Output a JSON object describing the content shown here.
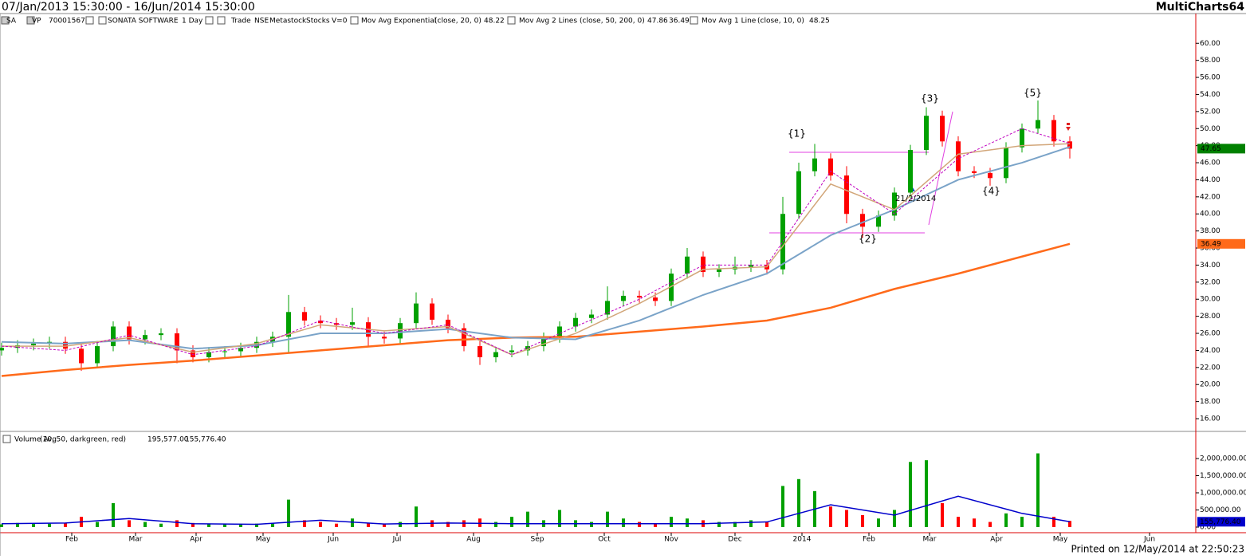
{
  "header": {
    "range": "07/Jan/2013 15:30:00 - 16/Jun/2014 15:30:00",
    "brand": "MultiCharts64",
    "legend": [
      "SA",
      "VP",
      "70001567",
      "SONATA SOFTWARE",
      "1 Day",
      "Trade",
      "NSE",
      "Metastock",
      "Stocks",
      "V=0",
      "Mov Avg Exponential",
      "(close,  20,  0)",
      "48.22",
      "Mov Avg 2 Lines",
      "(close,  50,  200,  0)",
      "47.86",
      "36.49",
      "Mov Avg 1 Line",
      "(close,  10,  0)",
      "48.25"
    ]
  },
  "footer": "Printed on 12/May/2014 at 22:50:23",
  "annotations": [
    "{1}",
    "{2}",
    "{3}",
    "{4}",
    "{5}",
    "21/2/2014"
  ],
  "chart_data": [
    {
      "type": "candlestick",
      "x": [
        0,
        5,
        10,
        15,
        20,
        25,
        30,
        35,
        40,
        45,
        50,
        55,
        60,
        65,
        70,
        75,
        80,
        85,
        90,
        95,
        100,
        105,
        110,
        115,
        120,
        125,
        130,
        135,
        140,
        145,
        150,
        155,
        160,
        165,
        170,
        175,
        180,
        185,
        190,
        195,
        200,
        205,
        210,
        215,
        220,
        225,
        230,
        235,
        240,
        245,
        250,
        255,
        260,
        265,
        270,
        275,
        280,
        285,
        290,
        295,
        300,
        305,
        310,
        315,
        320,
        325,
        330,
        335
      ],
      "open": [
        24.0,
        24.3,
        24.6,
        24.8,
        25.0,
        24.2,
        22.5,
        24.5,
        26.8,
        25.3,
        25.8,
        26.0,
        24.0,
        23.2,
        23.8,
        23.9,
        24.3,
        25.0,
        25.6,
        28.5,
        27.5,
        27.2,
        27.0,
        27.3,
        25.6,
        25.4,
        27.2,
        29.5,
        27.6,
        26.6,
        24.5,
        23.2,
        23.8,
        24.0,
        24.5,
        25.5,
        26.8,
        27.8,
        28.2,
        29.8,
        30.4,
        30.2,
        29.8,
        33.0,
        35.0,
        33.2,
        33.5,
        33.8,
        34.0,
        33.5,
        40.0,
        45.0,
        46.5,
        44.5,
        40.0,
        38.5,
        39.8,
        42.5,
        47.5,
        51.5,
        48.5,
        45.0,
        44.8,
        44.2,
        47.8,
        50.0,
        51.0,
        48.5
      ],
      "high": [
        24.9,
        25.2,
        25.4,
        25.6,
        25.6,
        24.8,
        25.1,
        27.4,
        27.4,
        26.4,
        26.6,
        26.6,
        24.6,
        24.4,
        24.5,
        24.9,
        25.6,
        26.2,
        30.5,
        29.1,
        28.1,
        27.8,
        29.0,
        27.9,
        26.2,
        27.8,
        30.8,
        30.1,
        28.2,
        27.2,
        25.1,
        24.4,
        24.6,
        25.1,
        26.1,
        27.4,
        28.4,
        28.8,
        31.5,
        31.0,
        31.0,
        30.8,
        33.6,
        36.0,
        35.6,
        34.1,
        35.0,
        34.6,
        34.6,
        42.0,
        46.0,
        48.2,
        47.1,
        45.6,
        40.6,
        40.4,
        43.1,
        48.1,
        52.5,
        52.1,
        49.1,
        45.6,
        45.4,
        48.4,
        50.6,
        53.3,
        51.6,
        49.1
      ],
      "low": [
        23.4,
        23.7,
        24.0,
        24.2,
        23.6,
        21.6,
        21.9,
        23.9,
        24.7,
        24.7,
        25.2,
        22.5,
        22.6,
        22.6,
        23.2,
        23.3,
        23.7,
        24.4,
        23.8,
        26.9,
        26.6,
        26.4,
        26.4,
        24.5,
        24.8,
        24.8,
        26.6,
        27.0,
        26.0,
        23.9,
        22.3,
        22.6,
        23.2,
        23.4,
        23.9,
        24.9,
        26.2,
        27.2,
        27.6,
        29.2,
        29.6,
        29.2,
        29.2,
        32.4,
        32.6,
        32.6,
        32.9,
        33.2,
        32.9,
        32.9,
        39.4,
        44.4,
        43.9,
        38.9,
        37.2,
        37.9,
        39.2,
        41.9,
        46.9,
        47.9,
        44.4,
        44.2,
        43.3,
        43.6,
        47.2,
        49.4,
        47.9,
        46.5
      ],
      "close": [
        24.3,
        24.6,
        24.8,
        25.0,
        24.2,
        22.5,
        24.5,
        26.8,
        25.3,
        25.8,
        26.0,
        24.0,
        23.2,
        23.8,
        23.9,
        24.3,
        25.0,
        25.6,
        28.5,
        27.5,
        27.2,
        27.0,
        27.3,
        25.6,
        25.4,
        27.2,
        29.5,
        27.6,
        26.6,
        24.5,
        23.2,
        23.8,
        24.0,
        24.5,
        25.5,
        26.8,
        27.8,
        28.2,
        29.8,
        30.4,
        30.2,
        29.8,
        33.0,
        35.0,
        33.2,
        33.5,
        33.8,
        34.0,
        33.5,
        40.0,
        45.0,
        46.5,
        44.5,
        40.0,
        38.5,
        39.8,
        42.5,
        47.5,
        51.5,
        48.5,
        45.0,
        44.8,
        44.2,
        47.8,
        50.0,
        51.0,
        48.5,
        47.65
      ],
      "up_color": "#00a000",
      "down_color": "#ff0000",
      "ma_x": [
        0,
        20,
        40,
        60,
        80,
        100,
        120,
        140,
        160,
        180,
        200,
        220,
        240,
        260,
        280,
        300,
        320,
        335
      ],
      "overlays": [
        {
          "color": "#ff6a1a",
          "width": 2.5,
          "values": [
            21.0,
            21.7,
            22.3,
            22.8,
            23.4,
            24.0,
            24.6,
            25.2,
            25.5,
            25.6,
            26.2,
            26.8,
            27.5,
            29.0,
            31.2,
            33.0,
            35.0,
            36.49
          ]
        },
        {
          "color": "#7aa3c8",
          "width": 2,
          "values": [
            25.0,
            24.8,
            25.2,
            24.2,
            24.6,
            26.0,
            26.0,
            26.5,
            25.5,
            25.3,
            27.5,
            30.5,
            33.0,
            37.5,
            40.5,
            44.0,
            46.0,
            47.86
          ]
        },
        {
          "color": "#d2a679",
          "width": 1.5,
          "values": [
            24.5,
            24.5,
            25.5,
            23.8,
            24.8,
            27.0,
            26.3,
            26.8,
            23.5,
            26.0,
            29.5,
            33.5,
            33.8,
            43.5,
            40.5,
            47.0,
            48.0,
            48.22
          ]
        },
        {
          "color": "#c000c0",
          "width": 1,
          "dashed": true,
          "values": [
            24.5,
            24.0,
            25.8,
            23.5,
            24.5,
            27.5,
            26.0,
            27.0,
            23.5,
            26.8,
            30.0,
            34.0,
            34.0,
            45.0,
            40.0,
            46.5,
            50.0,
            48.25
          ]
        }
      ],
      "last_values": [
        47.65,
        36.49
      ],
      "last_colors": [
        "#008000",
        "#ff6a1a"
      ],
      "xlim": [
        -0.5,
        374.5
      ],
      "xticks": [
        {
          "value": 22,
          "label": "Feb"
        },
        {
          "value": 42,
          "label": "Mar"
        },
        {
          "value": 61,
          "label": "Apr"
        },
        {
          "value": 82,
          "label": "May"
        },
        {
          "value": 104,
          "label": "Jun"
        },
        {
          "value": 124,
          "label": "Jul"
        },
        {
          "value": 148,
          "label": "Aug"
        },
        {
          "value": 168,
          "label": "Sep"
        },
        {
          "value": 189,
          "label": "Oct"
        },
        {
          "value": 210,
          "label": "Nov"
        },
        {
          "value": 230,
          "label": "Dec"
        },
        {
          "value": 251,
          "label": "2014"
        },
        {
          "value": 272,
          "label": "Feb"
        },
        {
          "value": 291,
          "label": "Mar"
        },
        {
          "value": 312,
          "label": "Apr"
        },
        {
          "value": 332,
          "label": "May"
        },
        {
          "value": 360,
          "label": "Jun"
        }
      ],
      "ylim": [
        14.6,
        61.8
      ],
      "yticks": [
        {
          "value": 16,
          "label": "16.00"
        },
        {
          "value": 18,
          "label": "18.00"
        },
        {
          "value": 20,
          "label": "20.00"
        },
        {
          "value": 22,
          "label": "22.00"
        },
        {
          "value": 24,
          "label": "24.00"
        },
        {
          "value": 26,
          "label": "26.00"
        },
        {
          "value": 28,
          "label": "28.00"
        },
        {
          "value": 30,
          "label": "30.00"
        },
        {
          "value": 32,
          "label": "32.00"
        },
        {
          "value": 34,
          "label": "34.00"
        },
        {
          "value": 36,
          "label": "36.00"
        },
        {
          "value": 38,
          "label": "38.00"
        },
        {
          "value": 40,
          "label": "40.00"
        },
        {
          "value": 42,
          "label": "42.00"
        },
        {
          "value": 44,
          "label": "44.00"
        },
        {
          "value": 46,
          "label": "46.00"
        },
        {
          "value": 48,
          "label": "48.00"
        },
        {
          "value": 50,
          "label": "50.00"
        },
        {
          "value": 52,
          "label": "52.00"
        },
        {
          "value": 54,
          "label": "54.00"
        },
        {
          "value": 56,
          "label": "56.00"
        },
        {
          "value": 58,
          "label": "58.00"
        },
        {
          "value": 60,
          "label": "60.00"
        }
      ]
    },
    {
      "type": "bar",
      "legend": [
        "Volume Avg",
        "(10,  50,  darkgreen,  red)",
        "195,577.00",
        "155,776.40"
      ],
      "values": [
        80000,
        120000,
        90000,
        100000,
        110000,
        300000,
        150000,
        700000,
        200000,
        150000,
        100000,
        200000,
        120000,
        100000,
        90000,
        80000,
        100000,
        120000,
        800000,
        200000,
        150000,
        100000,
        250000,
        120000,
        100000,
        150000,
        600000,
        200000,
        150000,
        200000,
        250000,
        150000,
        300000,
        450000,
        200000,
        500000,
        200000,
        150000,
        450000,
        250000,
        150000,
        100000,
        300000,
        250000,
        200000,
        150000,
        150000,
        200000,
        150000,
        1200000,
        1400000,
        1050000,
        600000,
        500000,
        350000,
        250000,
        500000,
        1900000,
        1950000,
        700000,
        300000,
        250000,
        150000,
        400000,
        300000,
        2150000,
        300000,
        180000
      ],
      "avg_color": "#0000cc",
      "avg": [
        100000,
        120000,
        250000,
        100000,
        80000,
        200000,
        90000,
        120000,
        100000,
        100000,
        100000,
        100000,
        150000,
        650000,
        350000,
        900000,
        400000,
        155776.4
      ],
      "last_value": {
        "value": 155776.4,
        "label": "155,776.40"
      },
      "ylim": [
        -163000,
        2744000
      ],
      "yticks": [
        {
          "value": 0,
          "label": "0.00"
        },
        {
          "value": 500000,
          "label": "500,000.00"
        },
        {
          "value": 1000000,
          "label": "1,000,000.00"
        },
        {
          "value": 1500000,
          "label": "1,500,000.00"
        },
        {
          "value": 2000000,
          "label": "2,000,000.00"
        }
      ]
    }
  ]
}
